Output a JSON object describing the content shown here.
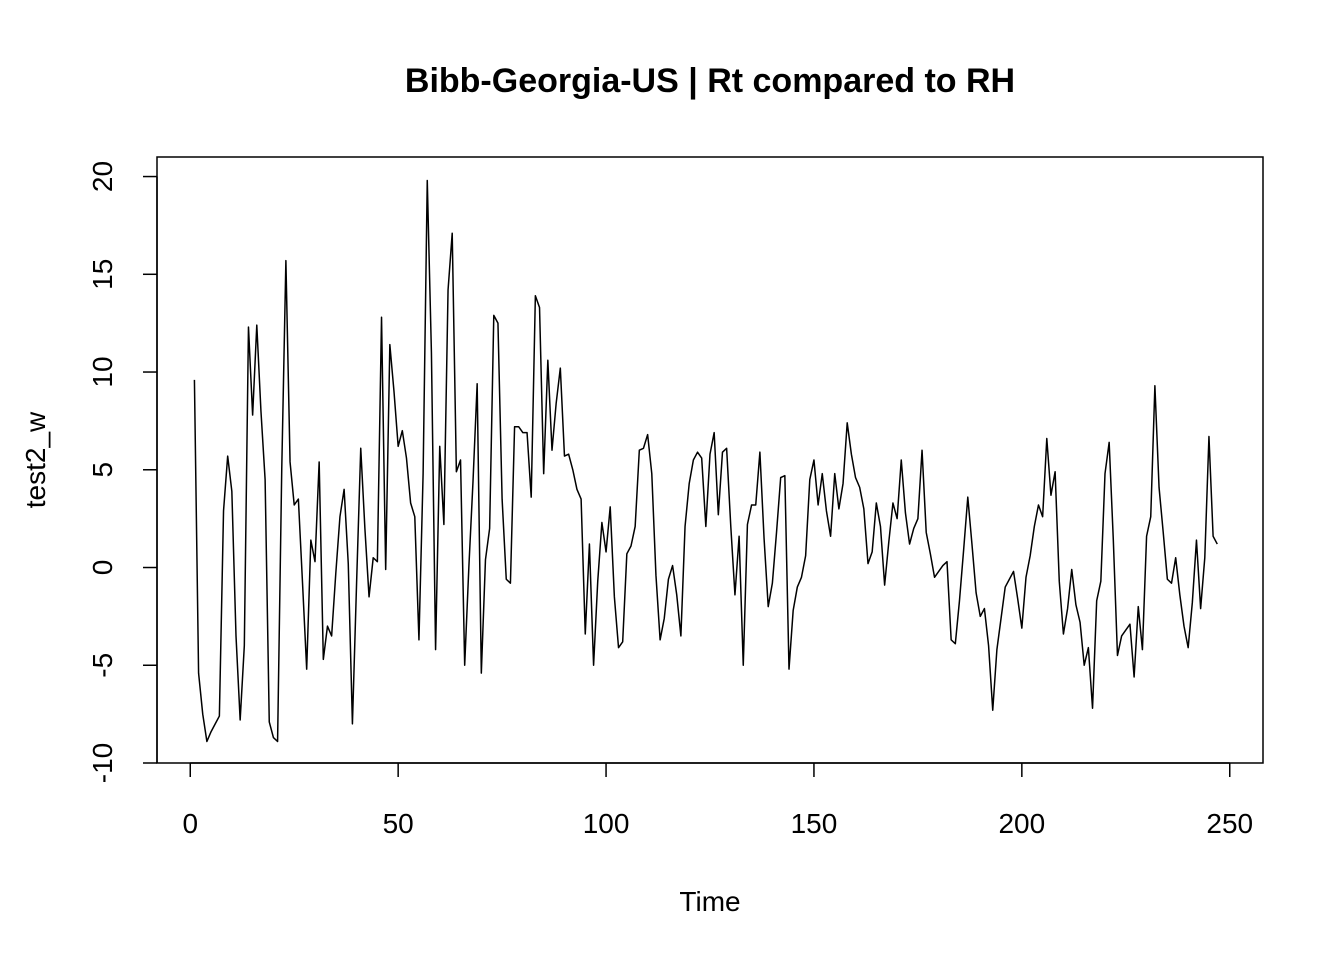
{
  "chart_data": {
    "type": "line",
    "title": "Bibb-Georgia-US | Rt compared to RH",
    "xlabel": "Time",
    "ylabel": "test2_w",
    "xlim": [
      -8,
      258
    ],
    "ylim": [
      -10,
      21
    ],
    "x_ticks": [
      0,
      50,
      100,
      150,
      200,
      250
    ],
    "y_ticks": [
      -10,
      -5,
      0,
      5,
      10,
      15,
      20
    ],
    "grid": false,
    "series": [
      {
        "x_start": 1,
        "x_step": 1,
        "values": [
          9.6,
          -5.4,
          -7.5,
          -8.9,
          -8.4,
          -8.0,
          -7.6,
          2.9,
          5.7,
          3.9,
          -3.5,
          -7.8,
          -4.0,
          12.3,
          7.8,
          12.4,
          8.0,
          4.5,
          -7.9,
          -8.7,
          -8.9,
          5.0,
          15.7,
          5.4,
          3.2,
          3.5,
          -0.8,
          -5.2,
          1.4,
          0.3,
          5.4,
          -4.7,
          -3.0,
          -3.5,
          -0.3,
          2.6,
          4.0,
          0.2,
          -8.0,
          -0.8,
          6.1,
          2.0,
          -1.5,
          0.5,
          0.3,
          12.8,
          -0.1,
          11.4,
          9.0,
          6.2,
          7.0,
          5.6,
          3.3,
          2.6,
          -3.7,
          4.8,
          19.8,
          11.0,
          -4.2,
          6.2,
          2.2,
          14.2,
          17.1,
          4.9,
          5.5,
          -5.0,
          0.0,
          4.4,
          9.4,
          -5.4,
          0.4,
          2.0,
          12.9,
          12.5,
          3.5,
          -0.6,
          -0.8,
          7.2,
          7.2,
          6.9,
          6.9,
          3.6,
          13.9,
          13.3,
          4.8,
          10.6,
          6.0,
          8.4,
          10.2,
          5.7,
          5.8,
          5.0,
          4.0,
          3.5,
          -3.4,
          1.2,
          -5.0,
          -0.7,
          2.3,
          0.8,
          3.1,
          -1.5,
          -4.1,
          -3.8,
          0.7,
          1.1,
          2.1,
          6.0,
          6.1,
          6.8,
          4.8,
          -0.4,
          -3.7,
          -2.6,
          -0.6,
          0.1,
          -1.4,
          -3.5,
          2.1,
          4.3,
          5.5,
          5.9,
          5.6,
          2.1,
          5.8,
          6.9,
          2.7,
          5.9,
          6.1,
          2.1,
          -1.4,
          1.6,
          -5.0,
          2.2,
          3.2,
          3.2,
          5.9,
          1.5,
          -2.0,
          -0.8,
          1.8,
          4.6,
          4.7,
          -5.2,
          -2.2,
          -1.0,
          -0.5,
          0.6,
          4.5,
          5.5,
          3.2,
          4.8,
          2.9,
          1.6,
          4.8,
          3.0,
          4.3,
          7.4,
          5.8,
          4.6,
          4.1,
          3.0,
          0.2,
          0.8,
          3.3,
          2.1,
          -0.9,
          1.3,
          3.3,
          2.5,
          5.5,
          2.8,
          1.2,
          2.0,
          2.5,
          6.0,
          1.8,
          0.7,
          -0.5,
          -0.2,
          0.1,
          0.3,
          -3.7,
          -3.9,
          -1.7,
          0.9,
          3.6,
          1.2,
          -1.3,
          -2.5,
          -2.1,
          -4.0,
          -7.3,
          -4.2,
          -2.6,
          -1.0,
          -0.6,
          -0.2,
          -1.6,
          -3.1,
          -0.5,
          0.6,
          2.1,
          3.2,
          2.6,
          6.6,
          3.7,
          4.9,
          -0.7,
          -3.4,
          -2.1,
          -0.1,
          -1.9,
          -2.8,
          -5.0,
          -4.1,
          -7.2,
          -1.7,
          -0.7,
          4.8,
          6.4,
          1.4,
          -4.5,
          -3.5,
          -3.2,
          -2.9,
          -5.6,
          -2.0,
          -4.2,
          1.6,
          2.6,
          9.3,
          4.1,
          1.8,
          -0.6,
          -0.8,
          0.5,
          -1.4,
          -3.0,
          -4.1,
          -1.8,
          1.4,
          -2.1,
          0.5,
          6.7,
          1.6,
          1.2
        ]
      }
    ]
  }
}
